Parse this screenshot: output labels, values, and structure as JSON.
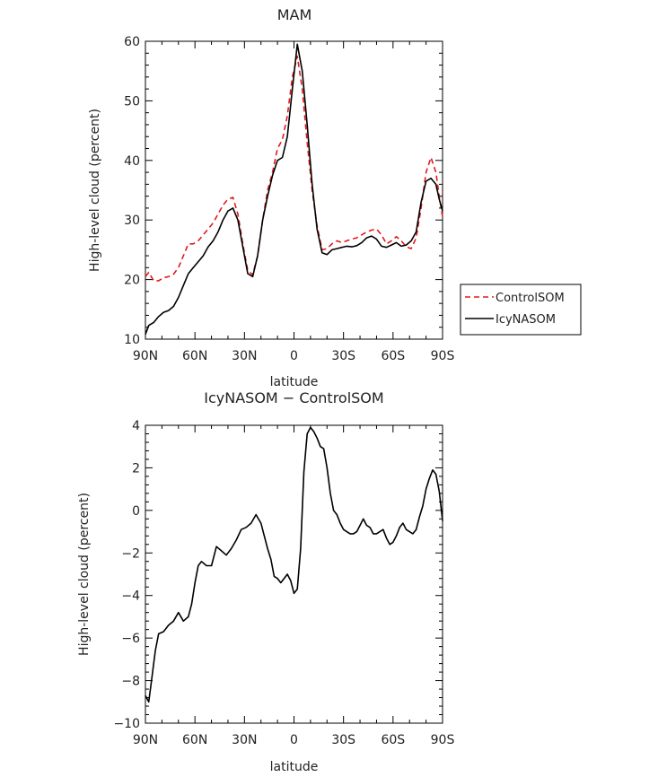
{
  "chart_data": [
    {
      "type": "line",
      "title": "MAM",
      "xlabel": "latitude",
      "ylabel": "High-level cloud (percent)",
      "xlim": [
        90,
        -90
      ],
      "ylim": [
        10,
        60
      ],
      "xticks": [
        90,
        60,
        30,
        0,
        -30,
        -60,
        -90
      ],
      "xtick_labels": [
        "90N",
        "60N",
        "30N",
        "0",
        "30S",
        "60S",
        "90S"
      ],
      "yticks": [
        10,
        20,
        30,
        40,
        50,
        60
      ],
      "ytick_labels": [
        "10",
        "20",
        "30",
        "40",
        "50",
        "60"
      ],
      "legend": {
        "placement": "right",
        "entries": [
          "ControlSOM",
          "IcyNASOM"
        ]
      },
      "series": [
        {
          "name": "ControlSOM",
          "color": "#e31a1c",
          "dash": "dashed",
          "x": [
            90,
            88,
            85,
            82,
            79,
            76,
            73,
            70,
            67,
            64,
            61,
            58,
            55,
            52,
            49,
            46,
            43,
            40,
            37,
            34,
            31,
            28,
            25,
            22,
            19,
            16,
            13,
            10,
            7,
            4,
            1,
            -2,
            -5,
            -8,
            -11,
            -14,
            -17,
            -20,
            -23,
            -26,
            -29,
            -32,
            -35,
            -38,
            -41,
            -44,
            -47,
            -50,
            -53,
            -56,
            -59,
            -62,
            -65,
            -68,
            -71,
            -74,
            -77,
            -80,
            -83,
            -86,
            -88,
            -90
          ],
          "y": [
            20.5,
            21.2,
            19.8,
            19.8,
            20.3,
            20.5,
            20.9,
            22.0,
            24.0,
            26.0,
            26.0,
            26.5,
            27.5,
            28.5,
            29.5,
            31.0,
            32.5,
            33.5,
            33.8,
            31.0,
            26.0,
            21.5,
            20.8,
            24.0,
            30.0,
            35.0,
            38.0,
            42.0,
            43.5,
            47.5,
            54.0,
            57.5,
            52.0,
            43.0,
            35.0,
            29.0,
            25.0,
            25.2,
            26.0,
            26.5,
            26.2,
            26.5,
            26.8,
            27.0,
            27.5,
            28.0,
            28.3,
            28.5,
            27.5,
            26.0,
            26.5,
            27.2,
            26.5,
            25.5,
            25.2,
            27.0,
            32.0,
            38.0,
            40.5,
            38.0,
            34.0,
            30.5
          ]
        },
        {
          "name": "IcyNASOM",
          "color": "#000000",
          "dash": "solid",
          "x": [
            90,
            88,
            85,
            82,
            79,
            76,
            73,
            70,
            67,
            64,
            61,
            58,
            55,
            52,
            49,
            46,
            43,
            40,
            37,
            34,
            31,
            28,
            25,
            22,
            19,
            16,
            13,
            10,
            7,
            4,
            1,
            -2,
            -5,
            -8,
            -11,
            -14,
            -17,
            -20,
            -23,
            -26,
            -29,
            -32,
            -35,
            -38,
            -41,
            -44,
            -47,
            -50,
            -53,
            -56,
            -59,
            -62,
            -65,
            -68,
            -71,
            -74,
            -77,
            -80,
            -83,
            -86,
            -88,
            -90
          ],
          "y": [
            10.8,
            12.3,
            12.8,
            13.8,
            14.5,
            14.8,
            15.5,
            17.0,
            19.0,
            21.0,
            22.0,
            23.0,
            24.0,
            25.5,
            26.5,
            28.0,
            30.0,
            31.5,
            32.0,
            30.0,
            25.5,
            21.0,
            20.5,
            24.0,
            30.0,
            34.0,
            37.5,
            40.0,
            40.5,
            44.0,
            52.0,
            59.5,
            55.0,
            46.0,
            36.0,
            28.5,
            24.5,
            24.2,
            25.0,
            25.2,
            25.4,
            25.6,
            25.5,
            25.7,
            26.2,
            27.0,
            27.3,
            26.8,
            25.6,
            25.4,
            25.8,
            26.2,
            25.6,
            25.8,
            26.5,
            28.0,
            33.0,
            36.5,
            37.0,
            36.0,
            33.5,
            31.5
          ]
        }
      ]
    },
    {
      "type": "line",
      "title": "IcyNASOM − ControlSOM",
      "xlabel": "latitude",
      "ylabel": "High-level cloud (percent)",
      "xlim": [
        90,
        -90
      ],
      "ylim": [
        -10,
        4
      ],
      "xticks": [
        90,
        60,
        30,
        0,
        -30,
        -60,
        -90
      ],
      "xtick_labels": [
        "90N",
        "60N",
        "30N",
        "0",
        "30S",
        "60S",
        "90S"
      ],
      "yticks": [
        -10,
        -8,
        -6,
        -4,
        -2,
        0,
        2,
        4
      ],
      "ytick_labels": [
        "−10",
        "−8",
        "−6",
        "−4",
        "−2",
        "0",
        "2",
        "4"
      ],
      "series": [
        {
          "color": "#000000",
          "dash": "solid",
          "x": [
            90,
            88,
            86,
            84,
            82,
            79,
            76,
            73,
            70,
            67,
            64,
            62,
            60,
            58,
            56,
            53,
            50,
            47,
            44,
            41,
            38,
            35,
            32,
            29,
            26,
            23,
            20,
            18,
            16,
            14,
            12,
            10,
            8,
            6,
            4,
            2,
            0,
            -2,
            -4,
            -6,
            -8,
            -10,
            -12,
            -14,
            -16,
            -18,
            -20,
            -22,
            -24,
            -26,
            -28,
            -30,
            -32,
            -34,
            -36,
            -38,
            -40,
            -42,
            -44,
            -46,
            -48,
            -50,
            -52,
            -54,
            -56,
            -58,
            -60,
            -62,
            -64,
            -66,
            -68,
            -70,
            -72,
            -74,
            -76,
            -78,
            -80,
            -82,
            -84,
            -86,
            -88,
            -90
          ],
          "y": [
            -8.7,
            -9.0,
            -7.8,
            -6.6,
            -5.8,
            -5.7,
            -5.4,
            -5.2,
            -4.8,
            -5.2,
            -5.0,
            -4.4,
            -3.4,
            -2.6,
            -2.4,
            -2.6,
            -2.6,
            -1.7,
            -1.9,
            -2.1,
            -1.8,
            -1.4,
            -0.9,
            -0.8,
            -0.6,
            -0.2,
            -0.6,
            -1.2,
            -1.8,
            -2.3,
            -3.1,
            -3.2,
            -3.4,
            -3.2,
            -3.0,
            -3.3,
            -3.9,
            -3.7,
            -1.8,
            1.8,
            3.6,
            3.9,
            3.7,
            3.4,
            3.0,
            2.9,
            2.0,
            0.8,
            0.0,
            -0.2,
            -0.6,
            -0.9,
            -1.0,
            -1.1,
            -1.1,
            -1.0,
            -0.7,
            -0.4,
            -0.7,
            -0.8,
            -1.1,
            -1.1,
            -1.0,
            -0.9,
            -1.3,
            -1.6,
            -1.5,
            -1.2,
            -0.8,
            -0.6,
            -0.9,
            -1.0,
            -1.1,
            -0.9,
            -0.3,
            0.2,
            1.0,
            1.5,
            1.9,
            1.7,
            0.9,
            -0.5
          ]
        }
      ]
    }
  ]
}
